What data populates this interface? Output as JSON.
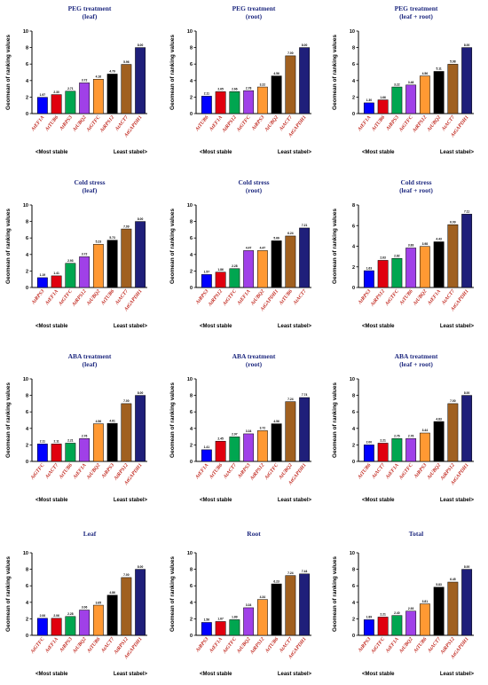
{
  "y_axis_label": "Geomean of ranking values",
  "footer": {
    "left": "<Most stable",
    "right": "Least stabel>"
  },
  "colors": [
    "#0000ff",
    "#e0000f",
    "#00a650",
    "#a040e8",
    "#ff9933",
    "#000000",
    "#a06020",
    "#1f1f7a"
  ],
  "chart_data": [
    {
      "type": "bar",
      "title": "PEG treatment",
      "subtitle": "(leaf)",
      "ylim": [
        0,
        10
      ],
      "yticks": [
        0,
        2,
        4,
        6,
        8,
        10
      ],
      "categories": [
        "AtEF1A",
        "AtTUB6",
        "AtRPS3",
        "AtUBQ2",
        "AtGTFC",
        "AtRPS12",
        "AtACT7",
        "AtGAPDH1"
      ],
      "values": [
        1.97,
        2.3,
        2.71,
        3.72,
        4.16,
        4.79,
        5.96,
        8.0
      ]
    },
    {
      "type": "bar",
      "title": "PEG treatment",
      "subtitle": "(root)",
      "ylim": [
        0,
        10
      ],
      "yticks": [
        0,
        2,
        4,
        6,
        8,
        10
      ],
      "categories": [
        "AtTUB6",
        "AtEF1A",
        "AtRPS12",
        "AtGTFC",
        "AtRPS3",
        "AtUBQ2",
        "AtACT7",
        "AtGAPDH1"
      ],
      "values": [
        2.11,
        2.65,
        2.66,
        2.78,
        3.22,
        4.56,
        7.0,
        8.0
      ]
    },
    {
      "type": "bar",
      "title": "PEG treatment",
      "subtitle": "(leaf + root)",
      "ylim": [
        0,
        10
      ],
      "yticks": [
        0,
        2,
        4,
        6,
        8,
        10
      ],
      "categories": [
        "AtEF1A",
        "AtTUB6",
        "AtRPS3",
        "AtGTFC",
        "AtRPS12",
        "AtUBQ2",
        "AtACT7",
        "AtGAPDH1"
      ],
      "values": [
        1.3,
        1.66,
        3.22,
        3.46,
        4.56,
        5.11,
        5.98,
        8.0
      ]
    },
    {
      "type": "bar",
      "title": "Cold stress",
      "subtitle": "(leaf)",
      "ylim": [
        0,
        10
      ],
      "yticks": [
        0,
        2,
        4,
        6,
        8,
        10
      ],
      "categories": [
        "AtRPS3",
        "AtEF1A",
        "AtGTFC",
        "AtRPS12",
        "AtUBQ2",
        "AtTUB6",
        "AtACT7",
        "AtGAPDH1"
      ],
      "values": [
        1.19,
        1.41,
        2.93,
        3.72,
        5.23,
        5.73,
        7.09,
        8.0
      ]
    },
    {
      "type": "bar",
      "title": "Cold stress",
      "subtitle": "(root)",
      "ylim": [
        0,
        10
      ],
      "yticks": [
        0,
        2,
        4,
        6,
        8,
        10
      ],
      "categories": [
        "AtRPS3",
        "AtRPS12",
        "AtGTFC",
        "AtEF1A",
        "AtUBQ2",
        "AtGAPDH1",
        "AtTUB6",
        "AtACT7"
      ],
      "values": [
        1.57,
        1.86,
        2.28,
        4.47,
        4.47,
        5.66,
        6.24,
        7.21
      ]
    },
    {
      "type": "bar",
      "title": "Cold stress",
      "subtitle": "(leaf + root)",
      "ylim": [
        0,
        8
      ],
      "yticks": [
        0,
        2,
        4,
        6,
        8
      ],
      "categories": [
        "AtRPS3",
        "AtRPS12",
        "AtGTFC",
        "AtTUB6",
        "AtUBQ2",
        "AtEF1A",
        "AtACT7",
        "AtGAPDH1"
      ],
      "values": [
        1.63,
        2.63,
        2.82,
        3.83,
        3.98,
        4.43,
        6.09,
        7.11
      ]
    },
    {
      "type": "bar",
      "title": "ABA treatment",
      "subtitle": "(leaf)",
      "ylim": [
        0,
        10
      ],
      "yticks": [
        0,
        2,
        4,
        6,
        8,
        10
      ],
      "categories": [
        "AtGTFC",
        "AtACT7",
        "AtTUB6",
        "AtEF1A",
        "AtUBQ2",
        "AtRPS3",
        "AtRPS12",
        "AtGAPDH1"
      ],
      "values": [
        2.11,
        2.11,
        2.21,
        2.76,
        4.56,
        4.61,
        7.0,
        8.0
      ]
    },
    {
      "type": "bar",
      "title": "ABA treatment",
      "subtitle": "(root)",
      "ylim": [
        0,
        10
      ],
      "yticks": [
        0,
        2,
        4,
        6,
        8,
        10
      ],
      "categories": [
        "AtEF1A",
        "AtTUB6",
        "AtACT7",
        "AtRPS3",
        "AtRPS12",
        "AtGTFC",
        "AtUBQ2",
        "AtGAPDH1"
      ],
      "values": [
        1.41,
        2.45,
        2.97,
        3.34,
        3.72,
        4.56,
        7.24,
        7.74
      ]
    },
    {
      "type": "bar",
      "title": "ABA treatment",
      "subtitle": "(leaf + root)",
      "ylim": [
        0,
        10
      ],
      "yticks": [
        0,
        2,
        4,
        6,
        8,
        10
      ],
      "categories": [
        "AtTUB6",
        "AtACT7",
        "AtEF1A",
        "AtGTFC",
        "AtRPS3",
        "AtUBQ2",
        "AtRPS12",
        "AtGAPDH1"
      ],
      "values": [
        2.0,
        2.21,
        2.76,
        2.76,
        3.44,
        4.83,
        7.0,
        8.0
      ]
    },
    {
      "type": "bar",
      "title": "Leaf",
      "subtitle": "",
      "ylim": [
        0,
        10
      ],
      "yticks": [
        0,
        2,
        4,
        6,
        8,
        10
      ],
      "categories": [
        "AtGTFC",
        "AtEF1A",
        "AtRPS3",
        "AtUBQ2",
        "AtTUB6",
        "AtACT7",
        "AtRPS12",
        "AtGAPDH1"
      ],
      "values": [
        2.06,
        2.06,
        2.28,
        3.06,
        3.65,
        4.86,
        7.0,
        8.0
      ]
    },
    {
      "type": "bar",
      "title": "Root",
      "subtitle": "",
      "ylim": [
        0,
        10
      ],
      "yticks": [
        0,
        2,
        4,
        6,
        8,
        10
      ],
      "categories": [
        "AtRPS3",
        "AtEF1A",
        "AtGTFC",
        "AtUBQ2",
        "AtRPS12",
        "AtTUB6",
        "AtACT7",
        "AtGAPDH1"
      ],
      "values": [
        1.56,
        1.67,
        1.89,
        3.34,
        4.34,
        6.23,
        7.24,
        7.44
      ]
    },
    {
      "type": "bar",
      "title": "Total",
      "subtitle": "",
      "ylim": [
        0,
        10
      ],
      "yticks": [
        0,
        2,
        4,
        6,
        8,
        10
      ],
      "categories": [
        "AtRPS3",
        "AtGTFC",
        "AtEF1A",
        "AtUBQ2",
        "AtTUB6",
        "AtACT7",
        "AtRPS12",
        "AtGAPDH1"
      ],
      "values": [
        1.89,
        2.21,
        2.4,
        2.93,
        3.81,
        5.83,
        6.45,
        8.0
      ]
    }
  ]
}
